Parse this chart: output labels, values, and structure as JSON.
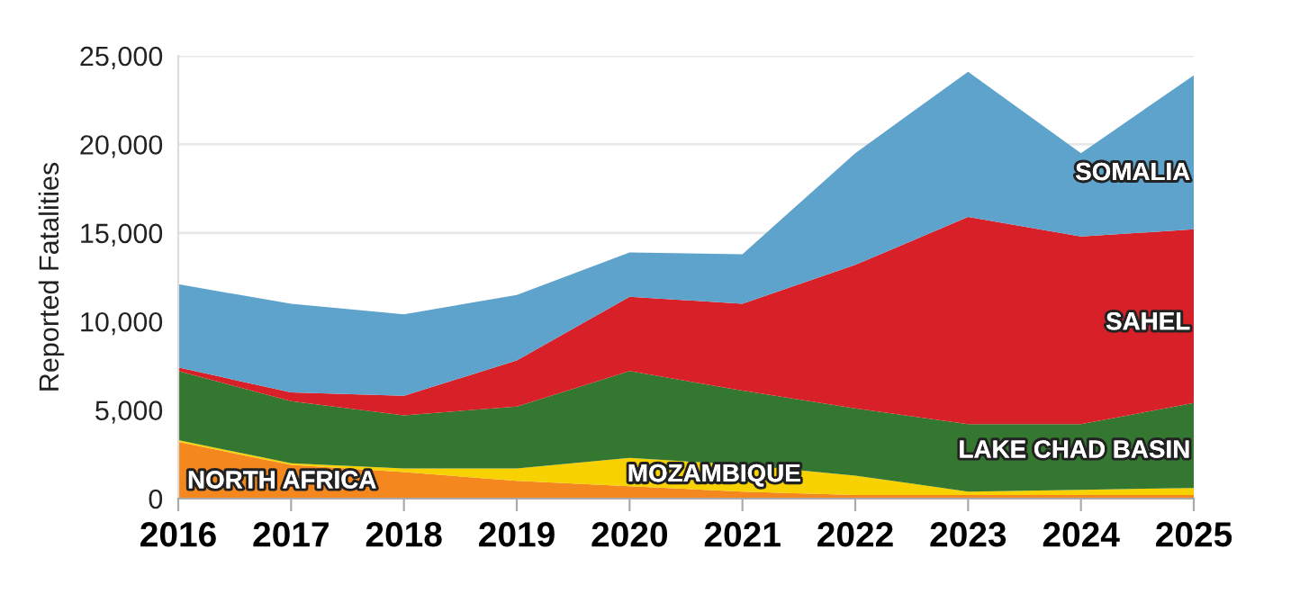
{
  "chart_data": {
    "type": "area",
    "stacked": true,
    "ylabel": "Reported Fatalities",
    "x": [
      2016,
      2017,
      2018,
      2019,
      2020,
      2021,
      2022,
      2023,
      2024,
      2025
    ],
    "series": [
      {
        "name": "NORTH AFRICA",
        "color": "#f5871f",
        "values": [
          3200,
          1900,
          1500,
          1000,
          700,
          400,
          200,
          200,
          200,
          200
        ]
      },
      {
        "name": "MOZAMBIQUE",
        "color": "#f7d200",
        "values": [
          100,
          100,
          200,
          700,
          1600,
          1500,
          1100,
          200,
          300,
          400
        ]
      },
      {
        "name": "LAKE CHAD BASIN",
        "color": "#347731",
        "values": [
          3900,
          3500,
          3000,
          3500,
          4900,
          4200,
          3800,
          3800,
          3700,
          4800
        ]
      },
      {
        "name": "SAHEL",
        "color": "#d72027",
        "values": [
          200,
          500,
          1100,
          2600,
          4200,
          4900,
          8100,
          11700,
          10600,
          9800
        ]
      },
      {
        "name": "SOMALIA",
        "color": "#5ea3cb",
        "values": [
          4700,
          5000,
          4600,
          3700,
          2500,
          2800,
          6300,
          8200,
          4700,
          8700
        ]
      }
    ],
    "xlim": [
      2016,
      2025
    ],
    "xticks": [
      2016,
      2017,
      2018,
      2019,
      2020,
      2021,
      2022,
      2023,
      2024,
      2025
    ],
    "ylim": [
      0,
      25000
    ],
    "yticks": [
      0,
      {
        "value": 5000,
        "label": "5,000"
      },
      {
        "value": 10000,
        "label": "10,000"
      },
      {
        "value": 15000,
        "label": "15,000"
      },
      {
        "value": 20000,
        "label": "20,000"
      },
      {
        "value": 25000,
        "label": "25,000"
      }
    ],
    "grid": "y",
    "legend": false
  }
}
